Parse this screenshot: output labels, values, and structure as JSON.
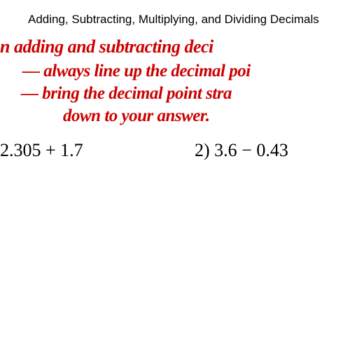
{
  "title": "Adding, Subtracting, Multiplying, and Dividing Decimals",
  "notes": {
    "line1": "n adding and subtracting deci",
    "line2": "— always line up the decimal poi",
    "line3": "— bring the decimal point stra",
    "line4": "down to your answer."
  },
  "problems": {
    "p1": "2.305 + 1.7",
    "p2": "2) 3.6 − 0.43"
  },
  "colors": {
    "title_color": "#000000",
    "handwriting_red": "#cc0000",
    "handwriting_black": "#000000",
    "background": "#ffffff"
  },
  "typography": {
    "title_fontsize": 17,
    "title_family": "Arial",
    "hand_fontsize": 26,
    "hand_family": "Comic Sans MS"
  }
}
